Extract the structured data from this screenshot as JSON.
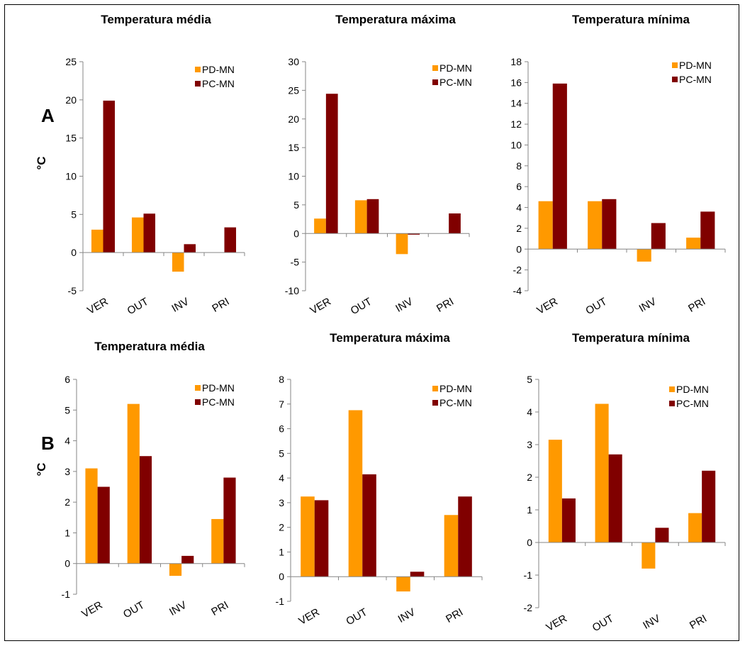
{
  "panel_labels": {
    "a": "A",
    "b": "B"
  },
  "colors": {
    "pd": "#FF9900",
    "pc": "#800000",
    "axis": "#868686"
  },
  "chart_data": [
    {
      "type": "bar",
      "title": "Temperatura média",
      "ylabel": "°C",
      "categories": [
        "VER",
        "OUT",
        "INV",
        "PRI"
      ],
      "ylim": [
        -5,
        25
      ],
      "yticks": [
        "-5",
        "0",
        "5",
        "10",
        "15",
        "20",
        "25"
      ],
      "legend": "top-right",
      "series": [
        {
          "name": "PD-MN",
          "values": [
            3.0,
            4.6,
            -2.5,
            0
          ]
        },
        {
          "name": "PC-MN",
          "values": [
            19.9,
            5.1,
            1.1,
            3.3
          ]
        }
      ]
    },
    {
      "type": "bar",
      "title": "Temperatura máxima",
      "categories": [
        "VER",
        "OUT",
        "INV",
        "PRI"
      ],
      "ylim": [
        -10,
        30
      ],
      "yticks": [
        "-10",
        "-5",
        "0",
        "5",
        "10",
        "15",
        "20",
        "25",
        "30"
      ],
      "legend": "top-right",
      "series": [
        {
          "name": "PD-MN",
          "values": [
            2.6,
            5.8,
            -3.6,
            0
          ]
        },
        {
          "name": "PC-MN",
          "values": [
            24.4,
            6.0,
            -0.2,
            3.5
          ]
        }
      ]
    },
    {
      "type": "bar",
      "title": "Temperatura  mínima",
      "categories": [
        "VER",
        "OUT",
        "INV",
        "PRI"
      ],
      "ylim": [
        -4,
        18
      ],
      "yticks": [
        "-4",
        "-2",
        "0",
        "2",
        "4",
        "6",
        "8",
        "10",
        "12",
        "14",
        "16",
        "18"
      ],
      "legend": "top-right",
      "series": [
        {
          "name": "PD-MN",
          "values": [
            4.6,
            4.6,
            -1.2,
            1.1
          ]
        },
        {
          "name": "PC-MN",
          "values": [
            15.9,
            4.8,
            2.5,
            3.6
          ]
        }
      ]
    },
    {
      "type": "bar",
      "title": "Temperatura média",
      "ylabel": "°C",
      "categories": [
        "VER",
        "OUT",
        "INV",
        "PRI"
      ],
      "ylim": [
        -1,
        6
      ],
      "yticks": [
        "-1",
        "0",
        "1",
        "2",
        "3",
        "4",
        "5",
        "6"
      ],
      "legend": "top-right",
      "series": [
        {
          "name": "PD-MN",
          "values": [
            3.1,
            5.2,
            -0.4,
            1.45
          ]
        },
        {
          "name": "PC-MN",
          "values": [
            2.5,
            3.5,
            0.25,
            2.8
          ]
        }
      ]
    },
    {
      "type": "bar",
      "title": "Temperatura máxima",
      "categories": [
        "VER",
        "OUT",
        "INV",
        "PRI"
      ],
      "ylim": [
        -1,
        8
      ],
      "yticks": [
        "-1",
        "0",
        "1",
        "2",
        "3",
        "4",
        "5",
        "6",
        "7",
        "8"
      ],
      "legend": "top-right",
      "series": [
        {
          "name": "PD-MN",
          "values": [
            3.25,
            6.75,
            -0.6,
            2.5
          ]
        },
        {
          "name": "PC-MN",
          "values": [
            3.1,
            4.15,
            0.2,
            3.25
          ]
        }
      ]
    },
    {
      "type": "bar",
      "title": "Temperatura mínima",
      "categories": [
        "VER",
        "OUT",
        "INV",
        "PRI"
      ],
      "ylim": [
        -2,
        5
      ],
      "yticks": [
        "-2",
        "-1",
        "0",
        "1",
        "2",
        "3",
        "4",
        "5"
      ],
      "legend": "top-right",
      "series": [
        {
          "name": "PD-MN",
          "values": [
            3.15,
            4.25,
            -0.8,
            0.9
          ]
        },
        {
          "name": "PC-MN",
          "values": [
            1.35,
            2.7,
            0.45,
            2.2
          ]
        }
      ]
    }
  ]
}
